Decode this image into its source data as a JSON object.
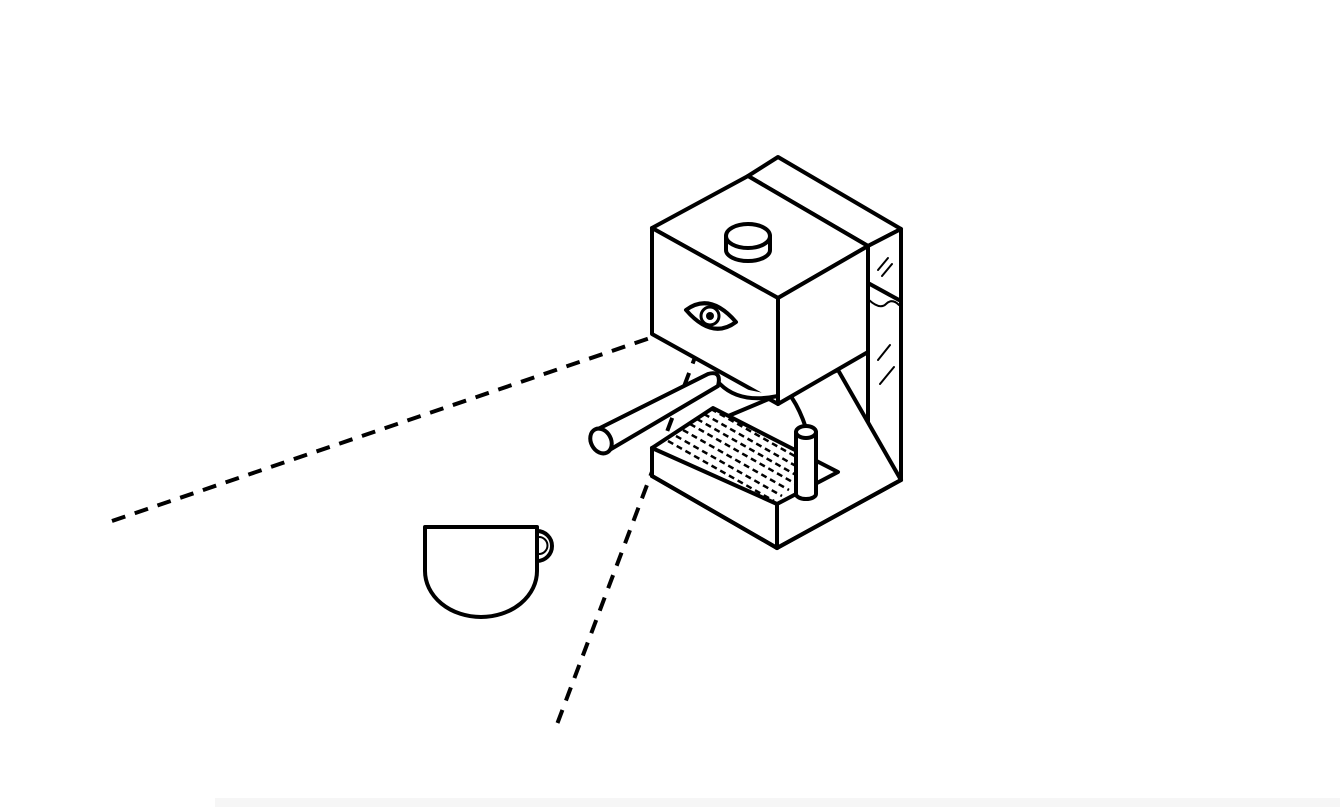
{
  "illustration": {
    "subject": "espresso-machine-icon",
    "secondary": "coffee-cup-icon",
    "line_color": "#000000",
    "background_color": "#ffffff",
    "line_style": "dashed sight lines"
  }
}
